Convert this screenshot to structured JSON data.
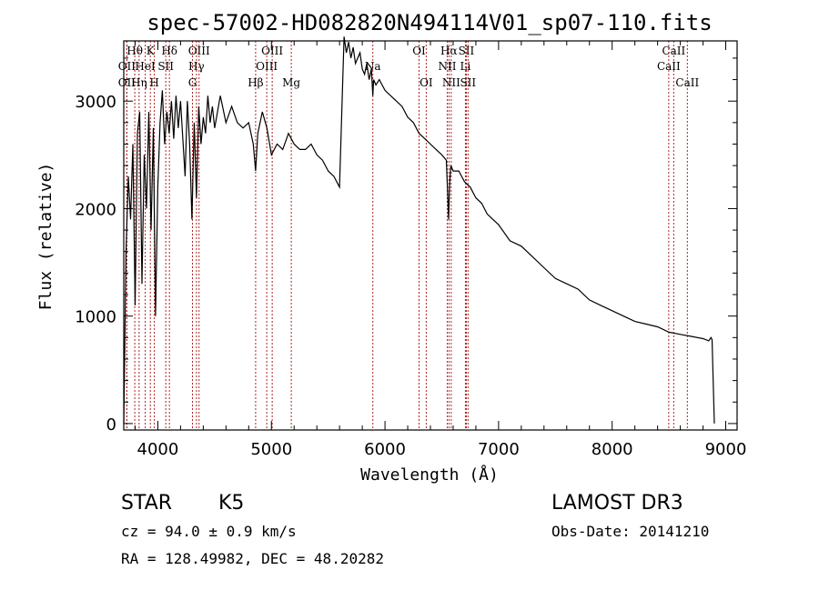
{
  "chart_data": {
    "type": "line",
    "title": "spec-57002-HD082820N494114V01_sp07-110.fits",
    "xlabel": "Wavelength (Å)",
    "ylabel": "Flux (relative)",
    "xlim": [
      3700,
      9100
    ],
    "ylim": [
      -60,
      3560
    ],
    "x_ticks": [
      4000,
      5000,
      6000,
      7000,
      8000,
      9000
    ],
    "y_ticks": [
      0,
      1000,
      2000,
      3000
    ],
    "series": [
      {
        "name": "flux",
        "x": [
          3700,
          3720,
          3740,
          3760,
          3780,
          3800,
          3820,
          3840,
          3860,
          3880,
          3900,
          3920,
          3940,
          3960,
          3980,
          4000,
          4020,
          4040,
          4060,
          4080,
          4100,
          4120,
          4140,
          4160,
          4180,
          4200,
          4220,
          4240,
          4260,
          4280,
          4300,
          4320,
          4340,
          4360,
          4380,
          4400,
          4420,
          4440,
          4460,
          4480,
          4500,
          4550,
          4600,
          4650,
          4700,
          4750,
          4800,
          4840,
          4861,
          4880,
          4920,
          4960,
          5000,
          5050,
          5100,
          5150,
          5200,
          5250,
          5300,
          5350,
          5400,
          5450,
          5500,
          5550,
          5600,
          5640,
          5660,
          5680,
          5700,
          5720,
          5740,
          5760,
          5780,
          5800,
          5820,
          5840,
          5860,
          5880,
          5893,
          5900,
          5920,
          5950,
          6000,
          6050,
          6100,
          6150,
          6200,
          6250,
          6300,
          6350,
          6400,
          6450,
          6500,
          6540,
          6560,
          6563,
          6570,
          6580,
          6600,
          6650,
          6700,
          6750,
          6800,
          6850,
          6900,
          6950,
          7000,
          7100,
          7200,
          7300,
          7400,
          7500,
          7600,
          7700,
          7800,
          7900,
          8000,
          8100,
          8200,
          8300,
          8400,
          8500,
          8600,
          8700,
          8800,
          8850,
          8870,
          8880,
          8900
        ],
        "y": [
          0,
          1600,
          2300,
          1900,
          2600,
          1100,
          2700,
          2900,
          1300,
          2500,
          2000,
          2900,
          1800,
          2750,
          1000,
          2200,
          2800,
          3100,
          2600,
          2900,
          2700,
          3000,
          2650,
          3050,
          2750,
          3000,
          2650,
          2300,
          3000,
          2600,
          1900,
          2800,
          2100,
          2950,
          2600,
          2850,
          2700,
          3050,
          2800,
          2950,
          2750,
          3050,
          2800,
          2950,
          2800,
          2750,
          2800,
          2600,
          2350,
          2700,
          2900,
          2750,
          2500,
          2600,
          2550,
          2700,
          2600,
          2550,
          2550,
          2600,
          2500,
          2450,
          2350,
          2300,
          2200,
          3600,
          3450,
          3550,
          3400,
          3500,
          3350,
          3400,
          3450,
          3300,
          3250,
          3350,
          3200,
          3300,
          3050,
          3200,
          3150,
          3200,
          3100,
          3050,
          3000,
          2950,
          2850,
          2800,
          2700,
          2650,
          2600,
          2550,
          2500,
          2450,
          1900,
          2000,
          2250,
          2400,
          2350,
          2350,
          2250,
          2200,
          2100,
          2050,
          1950,
          1900,
          1850,
          1700,
          1650,
          1550,
          1450,
          1350,
          1300,
          1250,
          1150,
          1100,
          1050,
          1000,
          950,
          925,
          900,
          850,
          830,
          810,
          790,
          770,
          800,
          780,
          0
        ]
      }
    ],
    "spectral_lines": [
      {
        "name": "Hθ",
        "wave": 3797,
        "row": 1
      },
      {
        "name": "Hη",
        "wave": 3835,
        "row": 3
      },
      {
        "name": "OII",
        "wave": 3727,
        "row": 2
      },
      {
        "name": "OII",
        "wave": 3727,
        "row": 3
      },
      {
        "name": "HeI",
        "wave": 3889,
        "row": 2
      },
      {
        "name": "K",
        "wave": 3934,
        "row": 1
      },
      {
        "name": "SII",
        "wave": 4070,
        "row": 2
      },
      {
        "name": "H",
        "wave": 3969,
        "row": 3
      },
      {
        "name": "Hδ",
        "wave": 4102,
        "row": 1
      },
      {
        "name": "OIII",
        "wave": 4363,
        "row": 1
      },
      {
        "name": "Hγ",
        "wave": 4340,
        "row": 2
      },
      {
        "name": "G",
        "wave": 4305,
        "row": 3
      },
      {
        "name": "OIII",
        "wave": 5007,
        "row": 1
      },
      {
        "name": "OIII",
        "wave": 4959,
        "row": 2
      },
      {
        "name": "Hβ",
        "wave": 4861,
        "row": 3
      },
      {
        "name": "Mg",
        "wave": 5175,
        "row": 3
      },
      {
        "name": "Na",
        "wave": 5893,
        "row": 2
      },
      {
        "name": "OI",
        "wave": 6300,
        "row": 1
      },
      {
        "name": "OI",
        "wave": 6363,
        "row": 3
      },
      {
        "name": "Hα",
        "wave": 6563,
        "row": 1
      },
      {
        "name": "NII",
        "wave": 6548,
        "row": 2
      },
      {
        "name": "NII",
        "wave": 6583,
        "row": 3
      },
      {
        "name": "SII",
        "wave": 6716,
        "row": 1
      },
      {
        "name": "Li",
        "wave": 6708,
        "row": 2
      },
      {
        "name": "SII",
        "wave": 6731,
        "row": 3
      },
      {
        "name": "CaII",
        "wave": 8542,
        "row": 1
      },
      {
        "name": "CaII",
        "wave": 8498,
        "row": 2
      },
      {
        "name": "CaII",
        "wave": 8662,
        "row": 3
      }
    ]
  },
  "info": {
    "object_type": "STAR",
    "subclass": "K5",
    "cz_label": "cz = 94.0 ± 0.9 km/s",
    "coords_label": "RA = 128.49982, DEC =  48.20282",
    "survey": "LAMOST DR3",
    "obs_date": "Obs-Date: 20141210"
  },
  "colors": {
    "line_marker": "#b22222",
    "spectrum": "#000000",
    "axes": "#000000"
  }
}
